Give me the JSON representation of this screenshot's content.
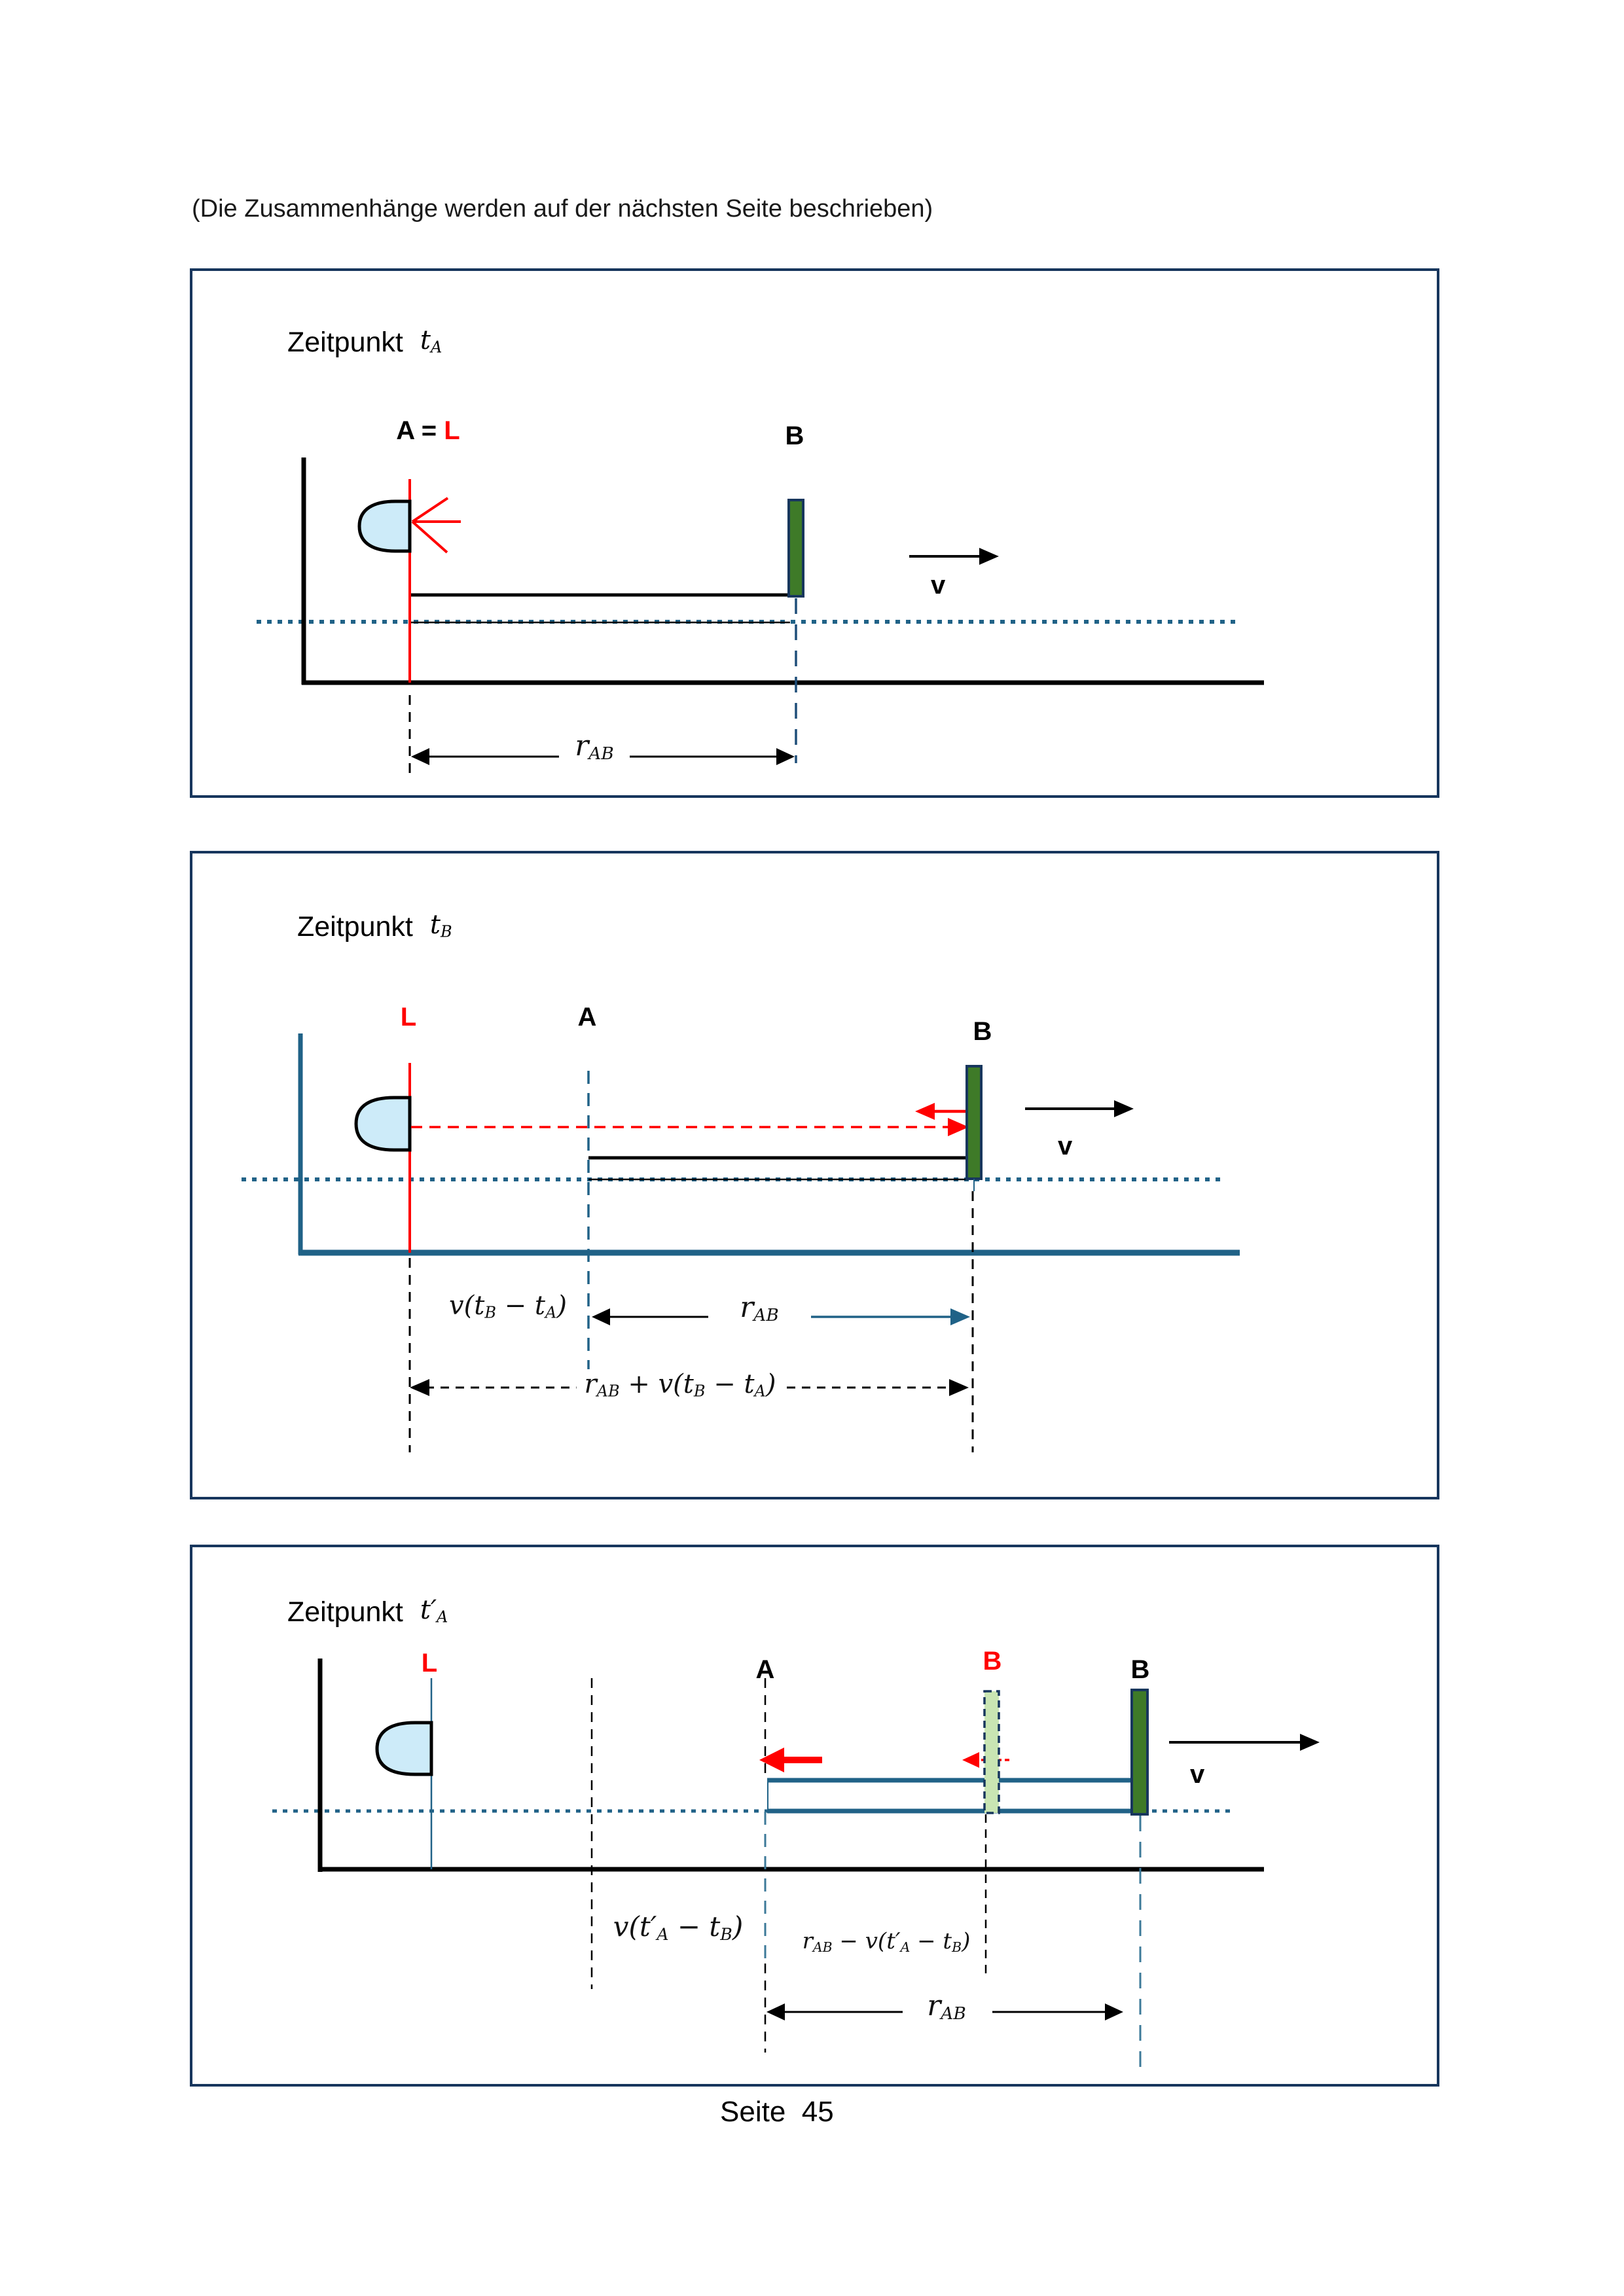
{
  "page": {
    "top_note": "(Die Zusammenhänge werden auf der nächsten Seite beschrieben)",
    "footer": "Seite  45"
  },
  "colors": {
    "navy": "#17365D",
    "steel": "#206287",
    "red": "#FF0000",
    "green": "#3E7A28",
    "ghost_green": "#C9E5B3",
    "lamp_blue": "#CDEBF9",
    "dash_blue": "#1F4E79",
    "teal_dash": "#3D7A99",
    "ink": "#1A1A1A"
  },
  "panels": [
    {
      "title_word": "Zeitpunkt",
      "time_symbol": "t_A",
      "label_a_eq": "A = ",
      "label_l": "L",
      "label_b": "B",
      "label_v": "v",
      "formula_rab": "r_AB"
    },
    {
      "title_word": "Zeitpunkt",
      "time_symbol": "t_B",
      "label_l": "L",
      "label_a": "A",
      "label_b": "B",
      "label_v": "v",
      "formula_shift": "v(t_B − t_A)",
      "formula_rab": "r_AB",
      "formula_total": "r_AB + v(t_B − t_A)"
    },
    {
      "title_word": "Zeitpunkt",
      "time_symbol": "t′_A",
      "label_l": "L",
      "label_a": "A",
      "label_b_ghost": "B",
      "label_b": "B",
      "label_v": "v",
      "formula_shift": "v(t′_A − t_B)",
      "formula_reduced": "r_AB − v(t′_A − t_B)",
      "formula_rab": "r_AB"
    }
  ]
}
